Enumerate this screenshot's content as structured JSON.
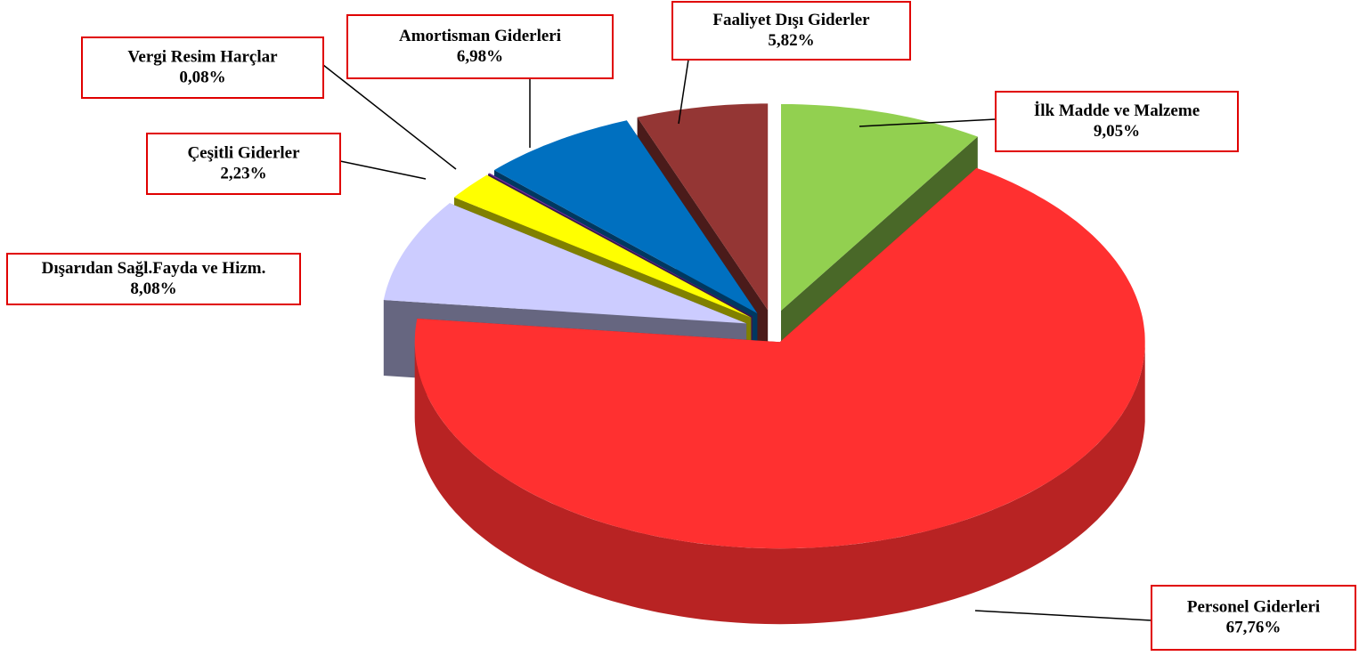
{
  "chart_data": {
    "type": "pie",
    "categories": [
      "İlk Madde ve Malzeme",
      "Personel Giderleri",
      "Dışarıdan Sağl.Fayda ve Hizm.",
      "Çeşitli Giderler",
      "Vergi Resim Harçlar",
      "Amortisman Giderleri",
      "Faaliyet Dışı Giderler"
    ],
    "values": [
      9.05,
      67.76,
      8.08,
      2.23,
      0.08,
      6.98,
      5.82
    ],
    "value_labels": [
      "9,05%",
      "67,76%",
      "8,08%",
      "2,23%",
      "0,08%",
      "6,98%",
      "5,82%"
    ],
    "colors": [
      "#92d050",
      "#ff3030",
      "#ccccff",
      "#ffff00",
      "#7030a0",
      "#0070c0",
      "#943634"
    ]
  }
}
